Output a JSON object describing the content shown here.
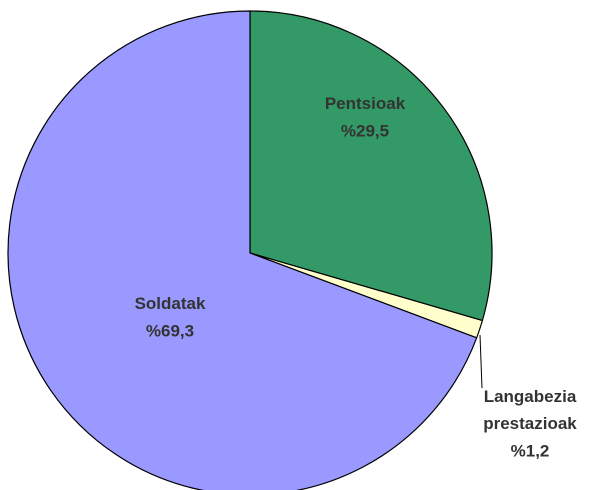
{
  "chart_data": {
    "type": "pie",
    "categories": [
      "Pentsioak",
      "Langabezia prestazioak",
      "Soldatak"
    ],
    "values": [
      29.5,
      1.2,
      69.3
    ],
    "value_labels": [
      "%29,5",
      "%1,2",
      "%69,3"
    ],
    "colors": [
      "#339966",
      "#ffffcc",
      "#9999ff"
    ]
  }
}
